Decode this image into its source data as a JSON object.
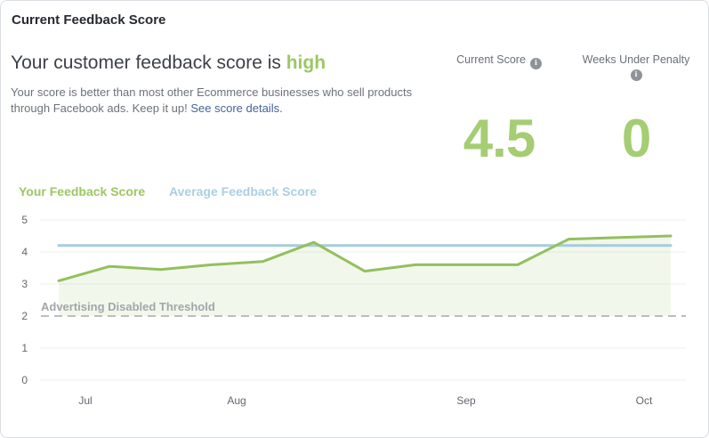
{
  "card_title": "Current Feedback Score",
  "header": {
    "headline_prefix": "Your customer feedback score is ",
    "headline_status": "high",
    "description": "Your score is better than most other Ecommerce businesses who sell products through Facebook ads. Keep it up! ",
    "link_label": "See score details."
  },
  "stats": {
    "current_score": {
      "label": "Current Score",
      "value": "4.5"
    },
    "weeks_under_penalty": {
      "label": "Weeks Under Penalty",
      "value": "0"
    }
  },
  "icons": {
    "info_glyph": "i"
  },
  "legend": {
    "your_score_label": "Your Feedback Score",
    "average_score_label": "Average Feedback Score"
  },
  "colors": {
    "accent_green_text": "#9cc763",
    "score_line_green": "#93c05e",
    "score_area_green": "rgba(147,192,94,0.12)",
    "average_line_blue": "#a6cbe0",
    "legend_blue_text": "#abcfe2",
    "threshold_dash_gray": "#bdbdbd",
    "gridline_gray": "#eef0f1",
    "axis_text_gray": "#62676e",
    "threshold_text_gray": "#a2a6ab"
  },
  "chart_data": {
    "type": "line",
    "title": "",
    "x_axis": "weekly points, Jul through Oct",
    "x_month_labels": [
      "Jul",
      "Aug",
      "Sep",
      "Oct"
    ],
    "yticks": [
      0,
      1,
      2,
      3,
      4,
      5
    ],
    "ylim": [
      0,
      5
    ],
    "grid": true,
    "legend_position": "top-left",
    "series": [
      {
        "name": "Your Feedback Score",
        "style": "line-with-area",
        "color": "#93c05e",
        "values": [
          3.1,
          3.55,
          3.45,
          3.6,
          3.7,
          4.3,
          3.4,
          3.6,
          3.6,
          3.6,
          4.4,
          4.45,
          4.5
        ]
      },
      {
        "name": "Average Feedback Score",
        "style": "horizontal-line",
        "color": "#a6cbe0",
        "value": 4.2
      }
    ],
    "threshold": {
      "label": "Advertising Disabled Threshold",
      "value": 2
    }
  }
}
